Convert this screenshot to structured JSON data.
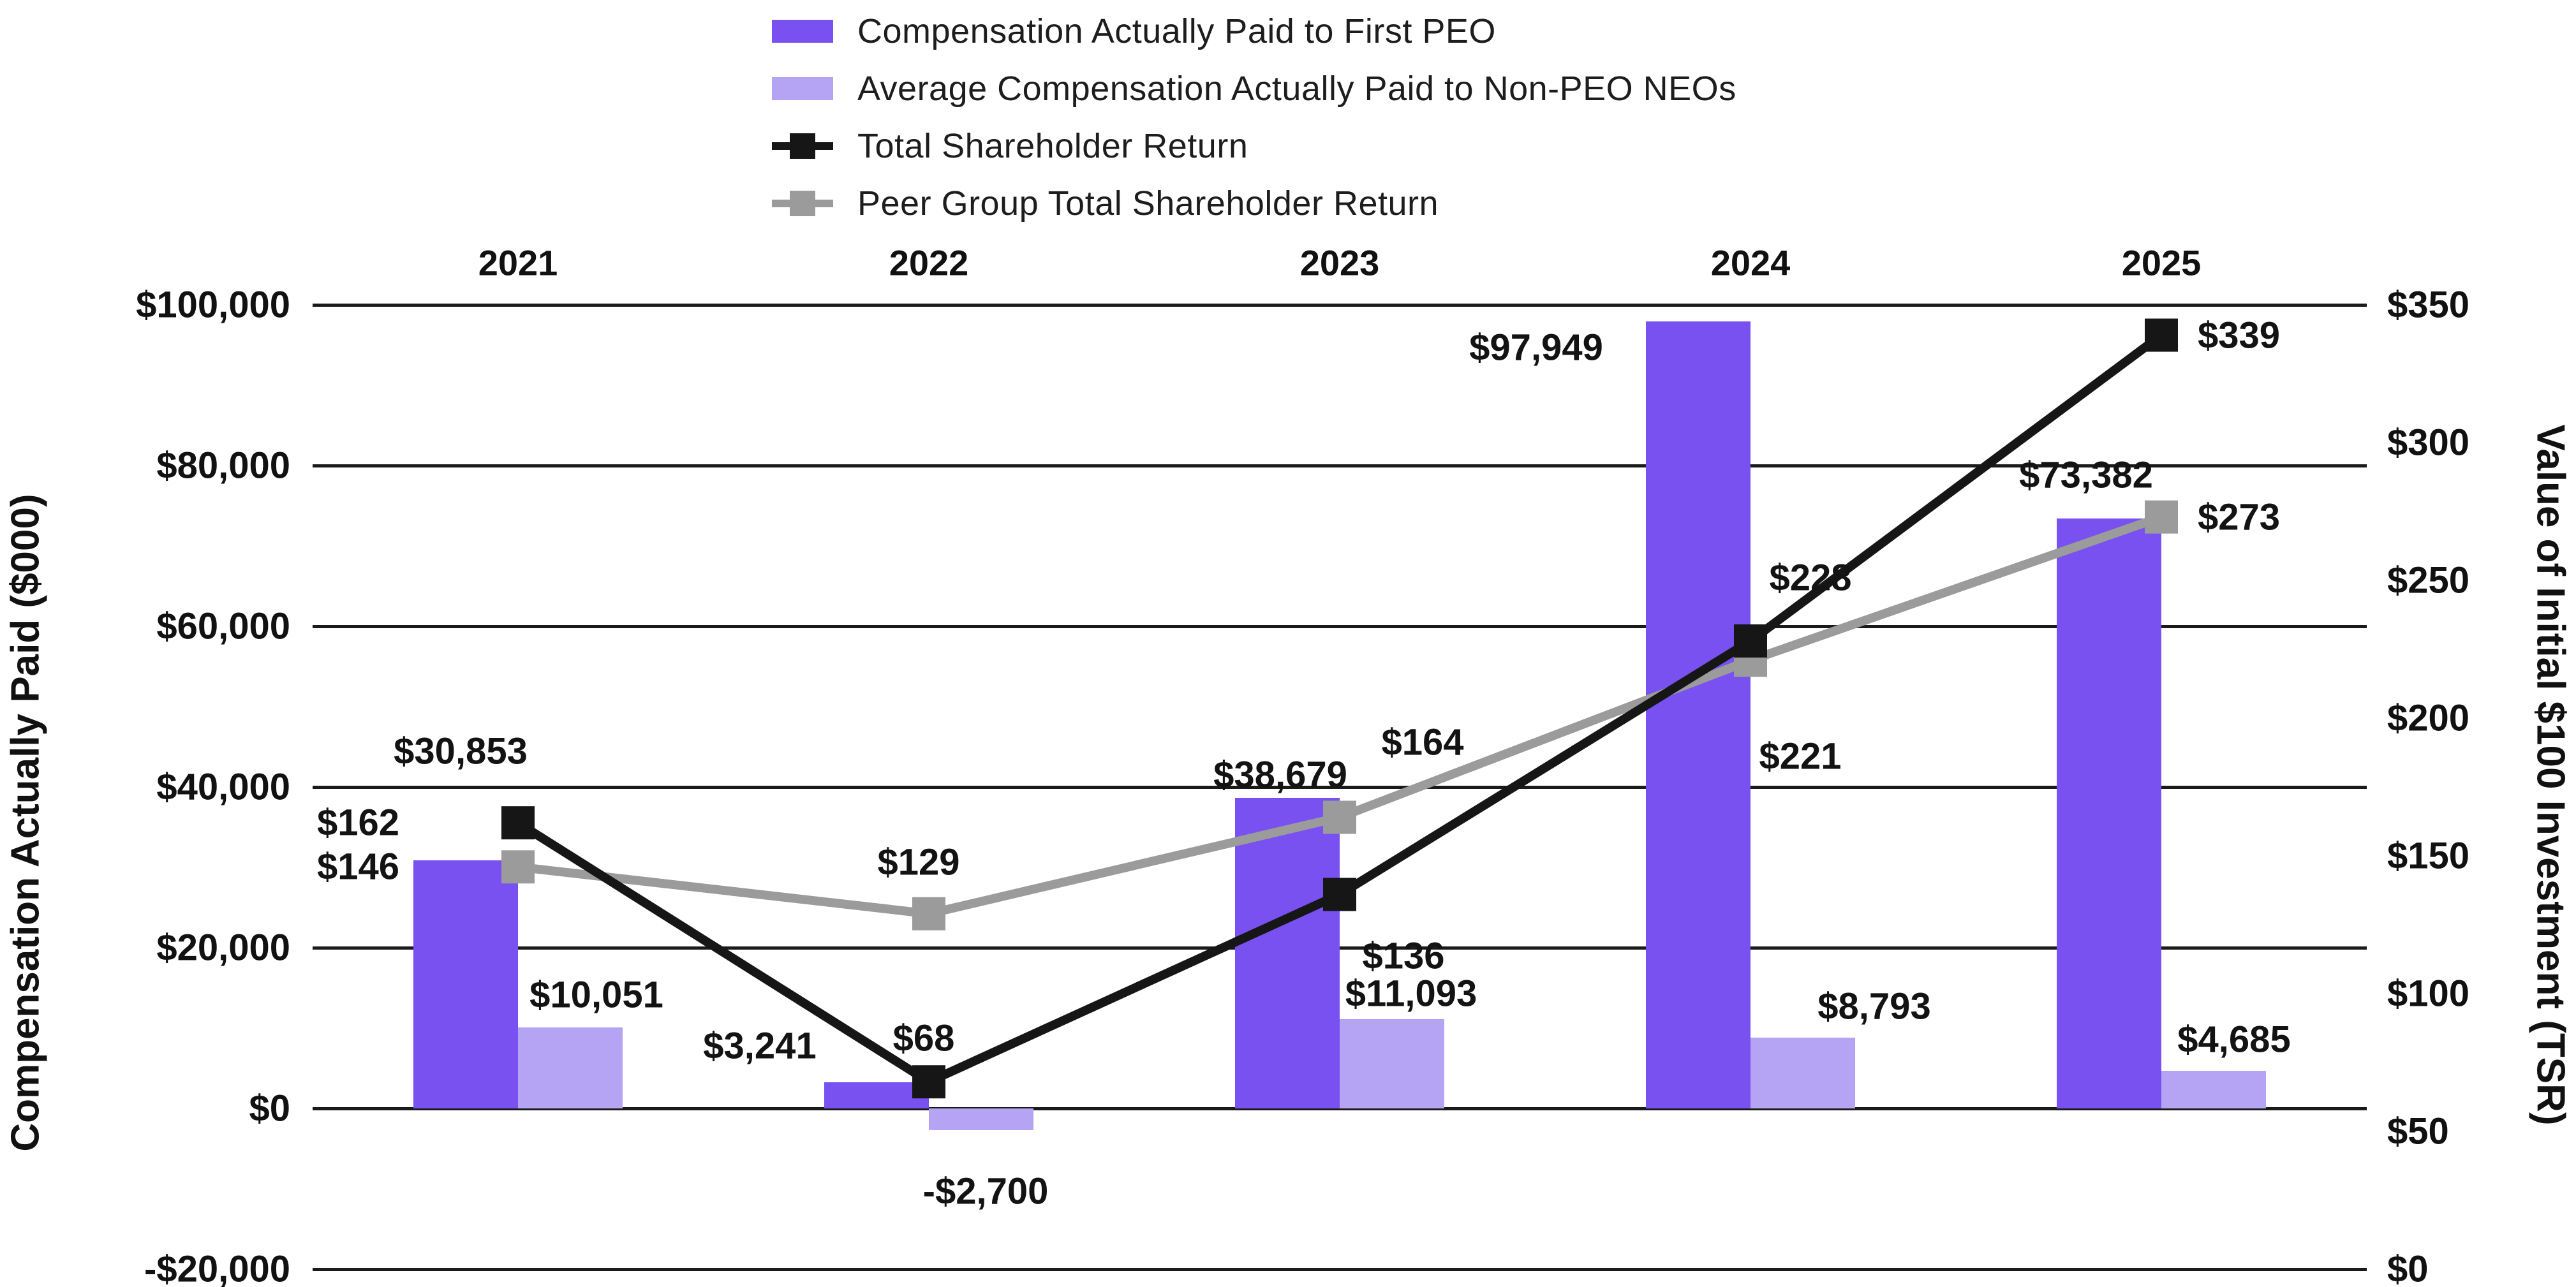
{
  "chart_data": {
    "type": "combo-bar-line",
    "categories": [
      "2021",
      "2022",
      "2023",
      "2024",
      "2025"
    ],
    "bar_series": [
      {
        "name": "Compensation Actually Paid to First PEO",
        "color": "#7851F0",
        "axis": "left",
        "values": [
          30853,
          3241,
          38679,
          97949,
          73382
        ],
        "labels": [
          "$30,853",
          "$3,241",
          "$38,679",
          "$97,949",
          "$73,382"
        ]
      },
      {
        "name": "Average Compensation Actually Paid to Non-PEO NEOs",
        "color": "#B5A4F4",
        "axis": "left",
        "values": [
          10051,
          -2700,
          11093,
          8793,
          4685
        ],
        "labels": [
          "$10,051",
          "-$2,700",
          "$11,093",
          "$8,793",
          "$4,685"
        ]
      }
    ],
    "line_series": [
      {
        "name": "Total Shareholder Return",
        "color": "#161616",
        "axis": "right",
        "values": [
          162,
          68,
          136,
          228,
          339
        ],
        "labels": [
          "$162",
          "$68",
          "$136",
          "$228",
          "$339"
        ]
      },
      {
        "name": "Peer Group Total Shareholder Return",
        "color": "#9B9B9B",
        "axis": "right",
        "values": [
          146,
          129,
          164,
          221,
          273
        ],
        "labels": [
          "$146",
          "$129",
          "$164",
          "$221",
          "$273"
        ]
      }
    ],
    "left_axis": {
      "title": "Compensation Actually Paid ($000)",
      "min": -20000,
      "max": 100000,
      "ticks": [
        "$100,000",
        "$80,000",
        "$60,000",
        "$40,000",
        "$20,000",
        "$0",
        "-$20,000"
      ]
    },
    "right_axis": {
      "title": "Value of Initial $100 Investment (TSR)",
      "min": 0,
      "max": 350,
      "ticks": [
        "$350",
        "$300",
        "$250",
        "$200",
        "$150",
        "$100",
        "$50",
        "$0"
      ]
    },
    "grid": true,
    "legend_position": "top"
  }
}
